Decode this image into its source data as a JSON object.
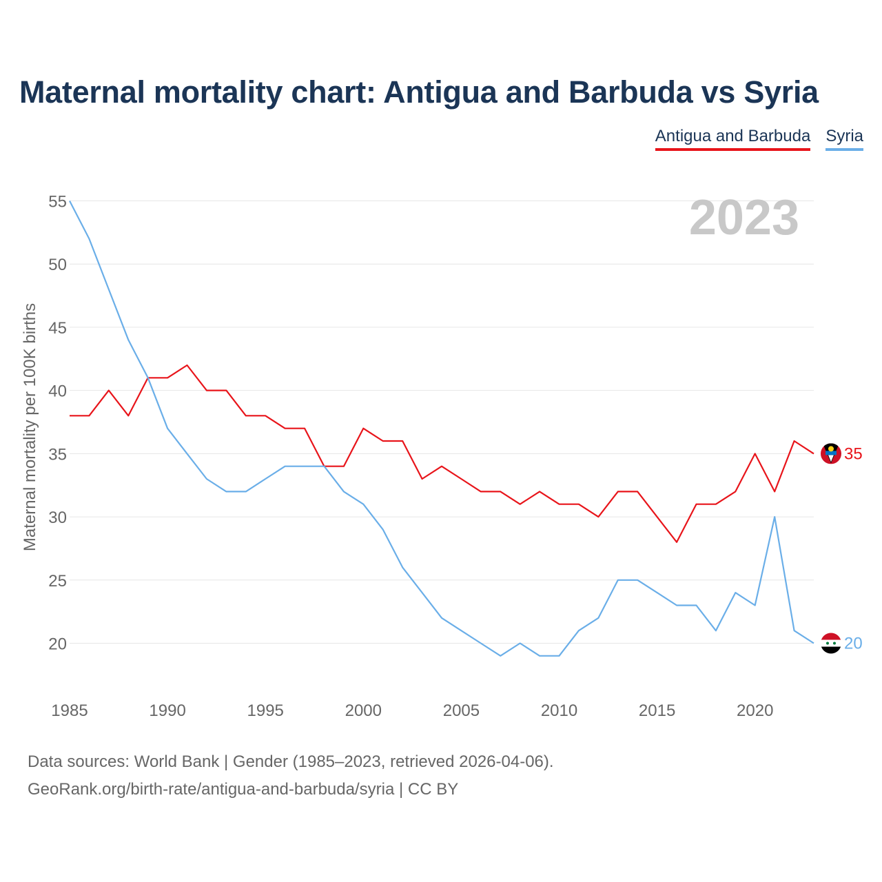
{
  "chart_data": {
    "type": "line",
    "title": "Maternal mortality chart: Antigua and Barbuda vs Syria",
    "ylabel": "Maternal mortality per 100K births",
    "xlabel": "",
    "year_badge": "2023",
    "x": [
      1985,
      1986,
      1987,
      1988,
      1989,
      1990,
      1991,
      1992,
      1993,
      1994,
      1995,
      1996,
      1997,
      1998,
      1999,
      2000,
      2001,
      2002,
      2003,
      2004,
      2005,
      2006,
      2007,
      2008,
      2009,
      2010,
      2011,
      2012,
      2013,
      2014,
      2015,
      2016,
      2017,
      2018,
      2019,
      2020,
      2021,
      2022,
      2023
    ],
    "xlim": [
      1985,
      2023
    ],
    "ylim": [
      17.5,
      56
    ],
    "yticks": [
      20,
      25,
      30,
      35,
      40,
      45,
      50,
      55
    ],
    "xticks": [
      1985,
      1990,
      1995,
      2000,
      2005,
      2010,
      2015,
      2020
    ],
    "grid": true,
    "series": [
      {
        "name": "Antigua and Barbuda",
        "color": "#e8141a",
        "end_label": "35",
        "flag_icon": "antigua-and-barbuda-flag-icon",
        "values": [
          38,
          38,
          40,
          38,
          41,
          41,
          42,
          40,
          40,
          38,
          38,
          37,
          37,
          34,
          34,
          37,
          36,
          36,
          33,
          34,
          33,
          32,
          32,
          31,
          32,
          31,
          31,
          30,
          32,
          32,
          30,
          28,
          31,
          31,
          32,
          35,
          32,
          36,
          35
        ]
      },
      {
        "name": "Syria",
        "color": "#6aaee8",
        "end_label": "20",
        "flag_icon": "syria-flag-icon",
        "values": [
          55,
          52,
          48,
          44,
          41,
          37,
          35,
          33,
          32,
          32,
          33,
          34,
          34,
          34,
          32,
          31,
          29,
          26,
          24,
          22,
          21,
          20,
          19,
          20,
          19,
          19,
          21,
          22,
          25,
          25,
          24,
          23,
          23,
          21,
          24,
          23,
          30,
          21,
          20
        ]
      }
    ]
  },
  "source": {
    "line1": "Data sources: World Bank | Gender (1985–2023, retrieved 2026-04-06).",
    "line2": "GeoRank.org/birth-rate/antigua-and-barbuda/syria | CC BY"
  }
}
